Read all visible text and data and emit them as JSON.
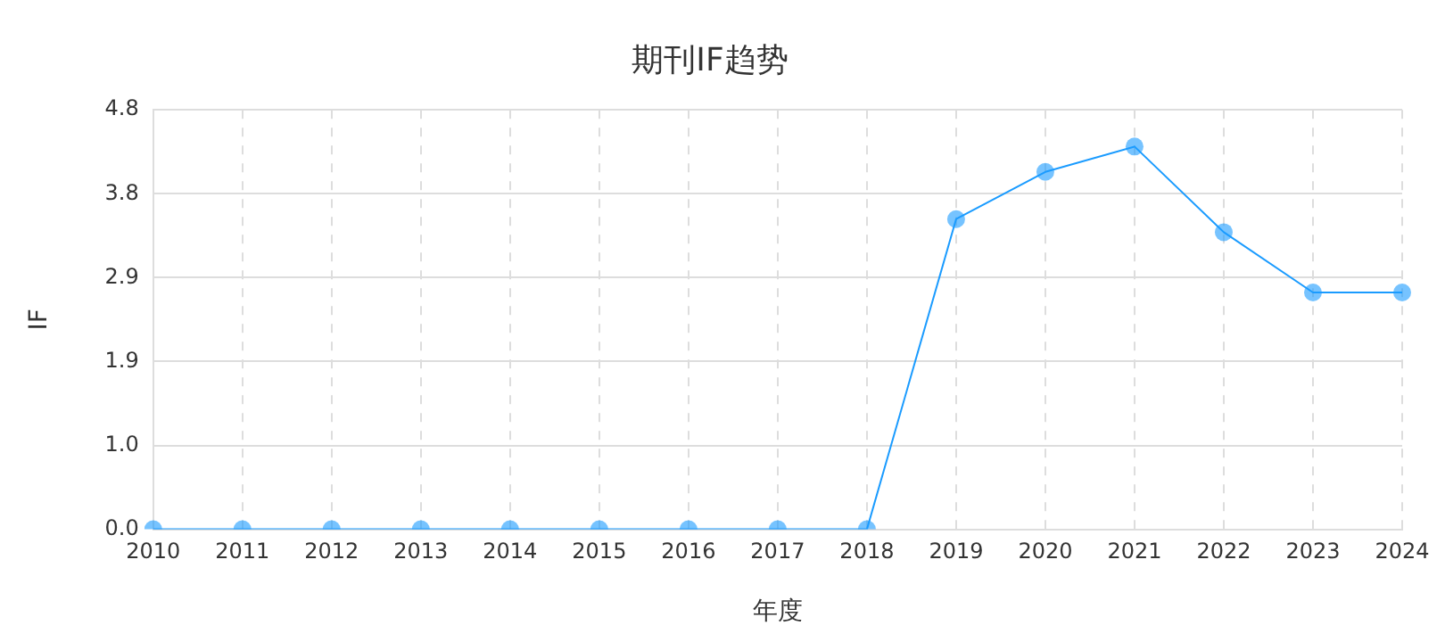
{
  "chart_data": {
    "type": "line",
    "title": "期刊IF趋势",
    "xlabel": "年度",
    "ylabel": "IF",
    "categories": [
      "2010",
      "2011",
      "2012",
      "2013",
      "2014",
      "2015",
      "2016",
      "2017",
      "2018",
      "2019",
      "2020",
      "2021",
      "2022",
      "2023",
      "2024"
    ],
    "series": [
      {
        "color": "#1a9bff",
        "values": [
          0,
          0,
          0,
          0,
          0,
          0,
          0,
          0,
          0,
          3.55,
          4.09,
          4.38,
          3.4,
          2.71,
          2.71
        ]
      }
    ],
    "ylim": [
      0,
      4.8
    ],
    "yticks": [
      {
        "value": 0,
        "label": "0.0"
      },
      {
        "value": 0.96,
        "label": "1.0"
      },
      {
        "value": 1.92,
        "label": "1.9"
      },
      {
        "value": 2.88,
        "label": "2.9"
      },
      {
        "value": 3.84,
        "label": "3.8"
      },
      {
        "value": 4.8,
        "label": "4.8"
      }
    ],
    "grid": true,
    "legend": false,
    "marker": "circle",
    "line_style": "solid"
  }
}
